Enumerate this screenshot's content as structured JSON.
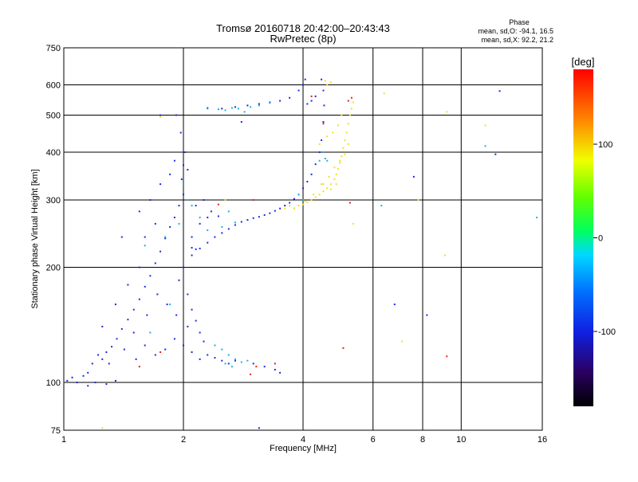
{
  "chart_data": {
    "type": "scatter",
    "title": "Tromsø 20160718 20:42:00–20:43:43",
    "subtitle": "RwPretec (8p)",
    "xlabel": "Frequency [MHz]",
    "ylabel": "Stationary phase Virtual Height [km]",
    "x_scale": "log",
    "y_scale": "log",
    "xlim": [
      1,
      16
    ],
    "ylim": [
      75,
      750
    ],
    "x_ticks": [
      1,
      2,
      4,
      6,
      8,
      10,
      16
    ],
    "y_ticks": [
      75,
      100,
      200,
      300,
      400,
      500,
      600,
      750
    ],
    "grid": true,
    "phase_title": "Phase",
    "stats_o": "mean, sd,O: -94.1, 16.5",
    "stats_x": "mean, sd,X:  92.2, 21.2",
    "colorbar": {
      "label": "[deg]",
      "range": [
        -180,
        180
      ],
      "ticks": [
        100,
        0,
        -100
      ]
    },
    "series": [
      {
        "points": [
          [
            1.02,
            101
          ],
          [
            1.05,
            103
          ],
          [
            1.08,
            100
          ],
          [
            1.12,
            104
          ],
          [
            1.15,
            106
          ],
          [
            1.18,
            112
          ],
          [
            1.22,
            118
          ],
          [
            1.25,
            115
          ],
          [
            1.28,
            120
          ],
          [
            1.32,
            124
          ],
          [
            1.36,
            130
          ],
          [
            1.4,
            138
          ],
          [
            1.45,
            146
          ],
          [
            1.5,
            155
          ],
          [
            1.55,
            165
          ],
          [
            1.6,
            178
          ],
          [
            1.65,
            190
          ],
          [
            1.7,
            205
          ],
          [
            1.75,
            220
          ],
          [
            1.8,
            238
          ],
          [
            1.85,
            255
          ],
          [
            1.9,
            270
          ],
          [
            1.95,
            290
          ],
          [
            2.0,
            310
          ],
          [
            1.98,
            340
          ],
          [
            2.0,
            370
          ],
          [
            2.02,
            400
          ],
          [
            1.97,
            450
          ],
          [
            1.92,
            500
          ],
          [
            1.6,
            240
          ],
          [
            1.7,
            260
          ],
          [
            1.55,
            200
          ],
          [
            1.45,
            180
          ],
          [
            1.35,
            160
          ],
          [
            1.5,
            135
          ],
          [
            1.6,
            125
          ],
          [
            1.7,
            118
          ],
          [
            1.8,
            122
          ],
          [
            1.9,
            130
          ],
          [
            2.0,
            125
          ],
          [
            2.1,
            120
          ],
          [
            2.2,
            115
          ],
          [
            2.3,
            118
          ],
          [
            2.4,
            116
          ],
          [
            2.5,
            114
          ],
          [
            2.6,
            112
          ],
          [
            2.7,
            114
          ],
          [
            1.3,
            112
          ],
          [
            1.25,
            140
          ],
          [
            1.42,
            122
          ],
          [
            1.52,
            115
          ],
          [
            1.62,
            150
          ],
          [
            1.72,
            170
          ],
          [
            1.82,
            160
          ],
          [
            1.92,
            150
          ],
          [
            2.05,
            140
          ],
          [
            2.1,
            225
          ],
          [
            2.15,
            223
          ],
          [
            2.2,
            224
          ],
          [
            2.3,
            232
          ],
          [
            2.4,
            240
          ],
          [
            2.5,
            246
          ],
          [
            2.6,
            252
          ],
          [
            2.7,
            258
          ],
          [
            2.8,
            263
          ],
          [
            2.9,
            266
          ],
          [
            3.0,
            269
          ],
          [
            3.1,
            271
          ],
          [
            3.2,
            274
          ],
          [
            3.3,
            277
          ],
          [
            3.4,
            281
          ],
          [
            3.5,
            285
          ],
          [
            3.6,
            290
          ],
          [
            3.7,
            295
          ],
          [
            3.8,
            302
          ],
          [
            3.9,
            310
          ],
          [
            4.0,
            322
          ],
          [
            4.1,
            335
          ],
          [
            4.2,
            350
          ],
          [
            4.3,
            372
          ],
          [
            4.4,
            400
          ],
          [
            4.45,
            430
          ],
          [
            4.5,
            480
          ],
          [
            4.52,
            530
          ],
          [
            4.5,
            580
          ],
          [
            4.45,
            620
          ],
          [
            4.3,
            560
          ],
          [
            4.2,
            545
          ],
          [
            4.1,
            535
          ],
          [
            4.0,
            600
          ],
          [
            4.05,
            620
          ],
          [
            3.9,
            580
          ],
          [
            3.7,
            555
          ],
          [
            3.5,
            545
          ],
          [
            3.3,
            540
          ],
          [
            3.1,
            535
          ],
          [
            2.9,
            530
          ],
          [
            2.7,
            525
          ],
          [
            2.5,
            520
          ],
          [
            2.3,
            522
          ],
          [
            2.1,
            240
          ],
          [
            2.2,
            260
          ],
          [
            2.15,
            290
          ],
          [
            2.25,
            300
          ],
          [
            2.05,
            360
          ],
          [
            2.1,
            215
          ],
          [
            2.0,
            200
          ],
          [
            1.95,
            185
          ],
          [
            2.05,
            170
          ],
          [
            2.1,
            155
          ],
          [
            2.15,
            145
          ],
          [
            2.2,
            135
          ],
          [
            2.25,
            128
          ],
          [
            3.0,
            112
          ],
          [
            3.2,
            110
          ],
          [
            3.4,
            108
          ],
          [
            3.5,
            106
          ],
          [
            1.4,
            240
          ],
          [
            1.55,
            280
          ],
          [
            1.65,
            300
          ],
          [
            1.75,
            330
          ],
          [
            1.85,
            350
          ],
          [
            1.9,
            380
          ],
          [
            2.3,
            270
          ],
          [
            2.35,
            280
          ],
          [
            2.45,
            272
          ],
          [
            1.15,
            98
          ],
          [
            1.2,
            100
          ],
          [
            1.28,
            99
          ],
          [
            1.35,
            101
          ],
          [
            7.6,
            345
          ],
          [
            8.2,
            150
          ],
          [
            12.5,
            578
          ],
          [
            12.2,
            395
          ],
          [
            6.8,
            160
          ],
          [
            2.8,
            480
          ],
          [
            3.1,
            76
          ],
          [
            1.75,
            500
          ]
        ]
      },
      {
        "points": [
          [
            2.3,
            520
          ],
          [
            2.45,
            518
          ],
          [
            2.55,
            515
          ],
          [
            2.65,
            522
          ],
          [
            2.75,
            520
          ],
          [
            2.85,
            510
          ],
          [
            2.95,
            525
          ],
          [
            3.1,
            530
          ],
          [
            3.3,
            538
          ],
          [
            4.5,
            400
          ],
          [
            4.55,
            385
          ],
          [
            4.6,
            380
          ],
          [
            2.4,
            125
          ],
          [
            2.5,
            122
          ],
          [
            2.6,
            118
          ],
          [
            2.7,
            115
          ],
          [
            2.8,
            113
          ],
          [
            2.9,
            114
          ],
          [
            2.55,
            112
          ],
          [
            2.65,
            110
          ],
          [
            2.3,
            250
          ],
          [
            2.5,
            255
          ],
          [
            2.7,
            262
          ],
          [
            2.2,
            270
          ],
          [
            2.6,
            280
          ],
          [
            1.85,
            160
          ],
          [
            1.65,
            135
          ],
          [
            2.0,
            330
          ],
          [
            2.05,
            300
          ],
          [
            1.95,
            260
          ],
          [
            1.6,
            228
          ],
          [
            1.8,
            240
          ],
          [
            2.1,
            290
          ],
          [
            15.5,
            270
          ],
          [
            11.5,
            415
          ],
          [
            6.3,
            290
          ],
          [
            4.4,
            380
          ],
          [
            4.0,
            300
          ],
          [
            3.9,
            310
          ]
        ]
      },
      {
        "points": [
          [
            3.8,
            285
          ],
          [
            3.9,
            290
          ],
          [
            4.0,
            292
          ],
          [
            4.1,
            296
          ],
          [
            4.2,
            300
          ],
          [
            4.3,
            305
          ],
          [
            4.4,
            310
          ],
          [
            4.5,
            316
          ],
          [
            4.6,
            322
          ],
          [
            4.7,
            330
          ],
          [
            4.8,
            340
          ],
          [
            4.85,
            350
          ],
          [
            4.9,
            362
          ],
          [
            4.95,
            375
          ],
          [
            5.0,
            390
          ],
          [
            5.05,
            410
          ],
          [
            5.1,
            430
          ],
          [
            5.15,
            450
          ],
          [
            5.2,
            475
          ],
          [
            5.25,
            500
          ],
          [
            5.3,
            520
          ],
          [
            5.35,
            540
          ],
          [
            5.0,
            500
          ],
          [
            4.9,
            470
          ],
          [
            4.75,
            450
          ],
          [
            4.6,
            440
          ],
          [
            4.4,
            420
          ],
          [
            4.55,
            615
          ],
          [
            4.6,
            600
          ],
          [
            4.7,
            610
          ],
          [
            3.6,
            285
          ],
          [
            3.7,
            290
          ],
          [
            4.05,
            298
          ],
          [
            4.25,
            310
          ],
          [
            4.45,
            330
          ],
          [
            4.65,
            345
          ],
          [
            4.8,
            365
          ],
          [
            4.95,
            380
          ],
          [
            5.1,
            395
          ],
          [
            5.2,
            420
          ],
          [
            4.85,
            330
          ],
          [
            4.7,
            320
          ],
          [
            4.5,
            330
          ],
          [
            5.35,
            260
          ],
          [
            6.4,
            570
          ],
          [
            9.2,
            510
          ],
          [
            9.1,
            215
          ],
          [
            11.5,
            470
          ],
          [
            7.1,
            128
          ],
          [
            7.8,
            300
          ],
          [
            1.25,
            76
          ],
          [
            1.75,
            495
          ],
          [
            2.55,
            300
          ]
        ]
      },
      {
        "points": [
          [
            5.3,
            555
          ],
          [
            5.2,
            545
          ],
          [
            5.25,
            295
          ],
          [
            3.0,
            300
          ],
          [
            2.95,
            105
          ],
          [
            3.05,
            110
          ],
          [
            5.05,
            123
          ],
          [
            9.2,
            117
          ],
          [
            1.55,
            110
          ],
          [
            1.75,
            120
          ],
          [
            2.45,
            292
          ],
          [
            3.4,
            112
          ],
          [
            4.2,
            560
          ],
          [
            4.5,
            475
          ]
        ]
      }
    ],
    "series_colors": [
      "#1a2be0",
      "#1ab0e0",
      "#f0e020",
      "#e0201a"
    ]
  }
}
